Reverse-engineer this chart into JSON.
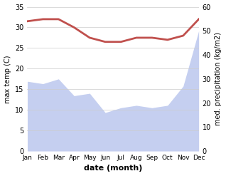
{
  "months": [
    "Jan",
    "Feb",
    "Mar",
    "Apr",
    "May",
    "Jun",
    "Jul",
    "Aug",
    "Sep",
    "Oct",
    "Nov",
    "Dec"
  ],
  "temp": [
    31.5,
    32.0,
    32.0,
    30.0,
    27.5,
    26.5,
    26.5,
    27.5,
    27.5,
    27.0,
    28.0,
    32.0
  ],
  "precip": [
    29.0,
    28.0,
    30.0,
    23.0,
    24.0,
    16.0,
    18.0,
    19.0,
    18.0,
    19.0,
    27.0,
    50.0
  ],
  "temp_color": "#c0504d",
  "precip_fill_color": "#c5cff0",
  "precip_fill_alpha": 1.0,
  "ylabel_left": "max temp (C)",
  "ylabel_right": "med. precipitation (kg/m2)",
  "xlabel": "date (month)",
  "ylim_left": [
    0,
    35
  ],
  "ylim_right": [
    0,
    60
  ],
  "yticks_left": [
    0,
    5,
    10,
    15,
    20,
    25,
    30,
    35
  ],
  "yticks_right": [
    0,
    10,
    20,
    30,
    40,
    50,
    60
  ],
  "temp_linewidth": 2.0,
  "ylabel_right_fontsize": 7,
  "ylabel_left_fontsize": 7,
  "xlabel_fontsize": 8,
  "tick_labelsize": 7,
  "month_labelsize": 6.5
}
